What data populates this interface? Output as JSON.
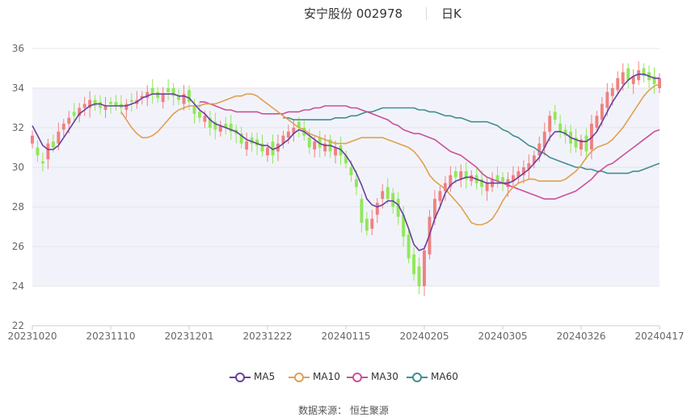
{
  "header": {
    "title": "安宁股份 002978",
    "period": "日K"
  },
  "footer": {
    "source_label": "数据来源：",
    "source_value": "恒生聚源"
  },
  "colors": {
    "up": "#f08080",
    "down": "#8fe85a",
    "MA5": "#6a3fa0",
    "MA10": "#e0a050",
    "MA30": "#cc4f9a",
    "MA60": "#3f8f90",
    "band": "#f2f3fa",
    "grid": "#e4e4e4",
    "axis_text": "#666666"
  },
  "chart_data": {
    "type": "candlestick",
    "title": "安宁股份 002978",
    "yticks": [
      "22",
      "24",
      "26",
      "28",
      "30",
      "32",
      "34",
      "36"
    ],
    "ylim": [
      22,
      36
    ],
    "xticks": [
      "20231020",
      "20231110",
      "20231201",
      "20231222",
      "20240115",
      "20240205",
      "20240305",
      "20240326",
      "20240417"
    ],
    "xtick_index": [
      0,
      15,
      30,
      45,
      60,
      75,
      90,
      105,
      120
    ],
    "n_days": 121,
    "legend": [
      "MA5",
      "MA10",
      "MA30",
      "MA60"
    ],
    "legend_position": "bottom-center",
    "grid": true,
    "shaded_band": [
      24,
      34
    ],
    "candles_close": [
      31.6,
      30.6,
      30.2,
      31.2,
      31.0,
      31.8,
      32.2,
      32.5,
      32.6,
      33.0,
      33.2,
      33.4,
      33.1,
      33.0,
      33.1,
      33.2,
      33.1,
      33.0,
      33.2,
      33.3,
      33.4,
      33.6,
      33.8,
      33.7,
      33.5,
      33.7,
      33.8,
      33.6,
      33.4,
      33.7,
      33.3,
      32.7,
      32.5,
      32.6,
      32.0,
      31.9,
      32.1,
      32.0,
      31.8,
      31.7,
      31.2,
      31.3,
      31.2,
      31.1,
      30.8,
      31.0,
      30.6,
      31.2,
      31.6,
      31.8,
      32.0,
      32.0,
      31.6,
      31.0,
      31.3,
      31.0,
      31.2,
      30.8,
      31.0,
      30.6,
      30.2,
      29.6,
      29.0,
      27.2,
      26.8,
      27.4,
      28.2,
      28.8,
      28.4,
      28.0,
      27.5,
      26.5,
      25.4,
      24.6,
      24.0,
      25.8,
      27.5,
      28.4,
      28.8,
      29.2,
      29.6,
      29.5,
      29.8,
      29.4,
      29.6,
      29.2,
      29.0,
      29.2,
      29.4,
      29.3,
      29.2,
      29.4,
      29.6,
      29.8,
      30.0,
      30.2,
      30.6,
      31.2,
      31.8,
      32.6,
      32.4,
      31.8,
      31.6,
      31.2,
      31.0,
      31.4,
      30.8,
      32.2,
      32.6,
      33.2,
      33.8,
      34.0,
      34.5,
      34.8,
      34.4,
      34.6,
      34.9,
      34.6,
      34.4,
      34.2,
      34.5
    ],
    "candles_open": [
      31.2,
      31.0,
      30.3,
      30.4,
      31.3,
      31.2,
      31.9,
      32.2,
      32.8,
      32.6,
      33.0,
      33.0,
      33.4,
      33.3,
      32.9,
      33.3,
      33.3,
      33.2,
      32.9,
      33.4,
      33.2,
      33.5,
      33.5,
      34.0,
      33.8,
      33.3,
      34.0,
      34.0,
      33.6,
      33.2,
      33.9,
      33.1,
      32.8,
      32.3,
      32.5,
      32.3,
      31.8,
      32.2,
      32.2,
      31.9,
      31.7,
      30.9,
      31.5,
      31.4,
      31.2,
      30.6,
      31.3,
      30.8,
      31.2,
      31.5,
      31.7,
      32.3,
      32.0,
      31.5,
      30.9,
      31.5,
      30.8,
      31.4,
      30.6,
      31.1,
      30.6,
      30.0,
      29.4,
      28.4,
      27.4,
      26.9,
      27.6,
      28.4,
      29.0,
      28.7,
      28.4,
      27.6,
      26.6,
      25.6,
      25.0,
      24.0,
      25.6,
      27.4,
      28.3,
      28.8,
      29.0,
      29.8,
      29.4,
      29.8,
      29.3,
      29.6,
      29.4,
      28.8,
      29.0,
      29.6,
      29.5,
      29.0,
      29.3,
      29.5,
      29.6,
      29.9,
      30.2,
      30.6,
      31.0,
      31.8,
      32.8,
      32.2,
      31.9,
      31.8,
      31.5,
      30.9,
      31.6,
      30.9,
      32.0,
      32.4,
      33.0,
      33.6,
      33.9,
      34.2,
      35.0,
      34.2,
      34.4,
      35.0,
      34.8,
      34.6,
      34.0
    ],
    "MA5": [
      32.1,
      31.6,
      31.1,
      30.9,
      30.9,
      31.1,
      31.5,
      31.9,
      32.3,
      32.7,
      32.9,
      33.1,
      33.2,
      33.2,
      33.1,
      33.1,
      33.1,
      33.1,
      33.1,
      33.2,
      33.3,
      33.5,
      33.6,
      33.7,
      33.7,
      33.7,
      33.7,
      33.7,
      33.6,
      33.6,
      33.5,
      33.2,
      32.9,
      32.7,
      32.4,
      32.2,
      32.1,
      32.0,
      31.9,
      31.8,
      31.6,
      31.4,
      31.3,
      31.2,
      31.1,
      31.1,
      30.9,
      31.0,
      31.2,
      31.4,
      31.7,
      31.9,
      31.8,
      31.6,
      31.4,
      31.2,
      31.1,
      31.1,
      31.0,
      30.9,
      30.6,
      30.2,
      29.7,
      29.1,
      28.4,
      28.1,
      28.0,
      28.1,
      28.3,
      28.3,
      28.1,
      27.6,
      26.9,
      26.1,
      25.8,
      25.9,
      26.6,
      27.4,
      28.0,
      28.7,
      29.1,
      29.3,
      29.4,
      29.5,
      29.5,
      29.4,
      29.3,
      29.2,
      29.2,
      29.2,
      29.2,
      29.2,
      29.3,
      29.5,
      29.7,
      29.9,
      30.2,
      30.5,
      31.0,
      31.5,
      31.8,
      31.8,
      31.7,
      31.5,
      31.4,
      31.3,
      31.3,
      31.5,
      31.8,
      32.3,
      32.8,
      33.3,
      33.7,
      34.1,
      34.4,
      34.6,
      34.7,
      34.7,
      34.6,
      34.5,
      34.5
    ],
    "MA10": [
      32.8,
      32.4,
      32.0,
      31.7,
      31.5,
      31.5,
      31.6,
      31.8,
      32.1,
      32.4,
      32.7,
      32.9,
      33.0,
      33.1,
      33.1,
      33.1,
      33.2,
      33.2,
      33.2,
      33.3,
      33.4,
      33.5,
      33.6,
      33.6,
      33.7,
      33.7,
      33.6,
      33.4,
      33.2,
      33.0,
      32.8,
      32.6,
      32.4,
      32.2,
      32.0,
      31.9,
      31.7,
      31.6,
      31.5,
      31.4,
      31.3,
      31.2,
      31.2,
      31.2,
      31.3,
      31.4,
      31.5,
      31.5,
      31.5,
      31.5,
      31.5,
      31.4,
      31.3,
      31.2,
      31.1,
      31.0,
      30.8,
      30.5,
      30.1,
      29.6,
      29.3,
      29.1,
      28.9,
      28.6,
      28.3,
      28.0,
      27.6,
      27.2,
      27.1,
      27.1,
      27.2,
      27.4,
      27.8,
      28.3,
      28.7,
      29.0,
      29.2,
      29.3,
      29.4,
      29.4,
      29.3,
      29.3,
      29.3,
      29.3,
      29.3,
      29.4,
      29.6,
      29.8,
      30.1,
      30.5,
      30.8,
      31.0,
      31.1,
      31.2,
      31.4,
      31.7,
      32.0,
      32.4,
      32.8,
      33.2,
      33.6,
      33.9,
      34.1,
      34.2
    ],
    "MA30": [
      33.3,
      33.3,
      33.2,
      33.1,
      33.0,
      32.9,
      32.9,
      32.8,
      32.8,
      32.8,
      32.8,
      32.8,
      32.7,
      32.7,
      32.7,
      32.7,
      32.7,
      32.8,
      32.8,
      32.8,
      32.9,
      32.9,
      33.0,
      33.0,
      33.1,
      33.1,
      33.1,
      33.1,
      33.1,
      33.0,
      33.0,
      32.9,
      32.8,
      32.7,
      32.6,
      32.5,
      32.4,
      32.2,
      32.1,
      31.9,
      31.8,
      31.7,
      31.7,
      31.6,
      31.5,
      31.4,
      31.2,
      31.0,
      30.8,
      30.7,
      30.6,
      30.4,
      30.2,
      30.0,
      29.7,
      29.5,
      29.4,
      29.3,
      29.2,
      29.1,
      29.0,
      28.9,
      28.8,
      28.7,
      28.6,
      28.5,
      28.4,
      28.4,
      28.4,
      28.5,
      28.6,
      28.7,
      28.8,
      29.0,
      29.2,
      29.4,
      29.7,
      29.9,
      30.1,
      30.2,
      30.4,
      30.6,
      30.8,
      31.0,
      31.2,
      31.4,
      31.6,
      31.8,
      31.9
    ],
    "MA60": [
      32.5,
      32.5,
      32.4,
      32.4,
      32.4,
      32.4,
      32.4,
      32.4,
      32.4,
      32.4,
      32.5,
      32.5,
      32.5,
      32.6,
      32.6,
      32.7,
      32.8,
      32.8,
      32.9,
      33.0,
      33.0,
      33.0,
      33.0,
      33.0,
      33.0,
      33.0,
      32.9,
      32.9,
      32.8,
      32.8,
      32.7,
      32.6,
      32.6,
      32.5,
      32.5,
      32.4,
      32.3,
      32.3,
      32.3,
      32.3,
      32.2,
      32.1,
      31.9,
      31.8,
      31.6,
      31.5,
      31.3,
      31.1,
      31.0,
      30.8,
      30.7,
      30.5,
      30.4,
      30.3,
      30.2,
      30.1,
      30.0,
      30.0,
      29.9,
      29.9,
      29.8,
      29.8,
      29.7,
      29.7,
      29.7,
      29.7,
      29.7,
      29.8,
      29.8,
      29.9,
      30.0,
      30.1,
      30.2
    ]
  }
}
